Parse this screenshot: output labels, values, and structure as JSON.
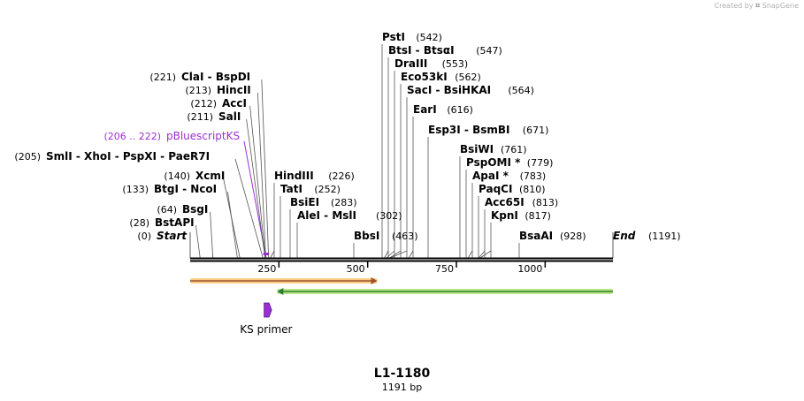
{
  "header": {
    "credit_prefix": "Created by",
    "brand": "SnapGene"
  },
  "construct": {
    "name": "L1-1180",
    "length_label": "1191 bp"
  },
  "colors": {
    "sites": "#000000",
    "primer": "#9b30d0",
    "feature1_fill": "#f6a623",
    "feature1_edge": "#a0522d",
    "feature2_fill": "#7ed321",
    "feature2_edge": "#2e7d32"
  },
  "sequence": {
    "length": 1191
  },
  "ticks": [
    {
      "pos": 250,
      "label": "250"
    },
    {
      "pos": 500,
      "label": "500"
    },
    {
      "pos": 750,
      "label": "750"
    },
    {
      "pos": 1000,
      "label": "1000"
    }
  ],
  "sites": [
    {
      "pos": 0,
      "text": "Start",
      "coord": "(0)",
      "side": "left",
      "italic": true
    },
    {
      "pos": 28,
      "text": "BstAPI",
      "coord": "(28)",
      "side": "left"
    },
    {
      "pos": 64,
      "text": "BsgI",
      "coord": "(64)",
      "side": "left"
    },
    {
      "pos": 133,
      "text": "BtgI - NcoI",
      "coord": "(133)",
      "side": "left"
    },
    {
      "pos": 140,
      "text": "XcmI",
      "coord": "(140)",
      "side": "left"
    },
    {
      "pos": 205,
      "text": "SmlI - XhoI - PspXI - PaeR7I",
      "coord": "(205)",
      "side": "left"
    },
    {
      "pos": 214,
      "text": "pBluescriptKS",
      "coord": "(206 .. 222)",
      "side": "left",
      "primer": true
    },
    {
      "pos": 211,
      "text": "SalI",
      "coord": "(211)",
      "side": "left"
    },
    {
      "pos": 212,
      "text": "AccI",
      "coord": "(212)",
      "side": "left"
    },
    {
      "pos": 213,
      "text": "HincII",
      "coord": "(213)",
      "side": "left"
    },
    {
      "pos": 221,
      "text": "ClaI - BspDI",
      "coord": "(221)",
      "side": "left"
    },
    {
      "pos": 226,
      "text": "HindIII",
      "coord": "(226)",
      "side": "right"
    },
    {
      "pos": 252,
      "text": "TatI",
      "coord": "(252)",
      "side": "right"
    },
    {
      "pos": 283,
      "text": "BsiEI",
      "coord": "(283)",
      "side": "right"
    },
    {
      "pos": 302,
      "text": "AleI - MslI",
      "coord": "(302)",
      "side": "right"
    },
    {
      "pos": 463,
      "text": "BbsI",
      "coord": "(463)",
      "side": "right"
    },
    {
      "pos": 542,
      "text": "PstI",
      "coord": "(542)",
      "side": "right"
    },
    {
      "pos": 547,
      "text": "BtsI - BtsαI",
      "coord": "(547)",
      "side": "right"
    },
    {
      "pos": 553,
      "text": "DraIII",
      "coord": "(553)",
      "side": "right"
    },
    {
      "pos": 562,
      "text": "Eco53kI",
      "coord": "(562)",
      "side": "right"
    },
    {
      "pos": 564,
      "text": "SacI - BsiHKAI",
      "coord": "(564)",
      "side": "right"
    },
    {
      "pos": 616,
      "text": "EarI",
      "coord": "(616)",
      "side": "right"
    },
    {
      "pos": 671,
      "text": "Esp3I - BsmBI",
      "coord": "(671)",
      "side": "right"
    },
    {
      "pos": 761,
      "text": "BsiWI",
      "coord": "(761)",
      "side": "right"
    },
    {
      "pos": 779,
      "text": "PspOMI *",
      "coord": "(779)",
      "side": "right"
    },
    {
      "pos": 783,
      "text": "ApaI *",
      "coord": "(783)",
      "side": "right"
    },
    {
      "pos": 810,
      "text": "PaqCI",
      "coord": "(810)",
      "side": "right"
    },
    {
      "pos": 813,
      "text": "Acc65I",
      "coord": "(813)",
      "side": "right"
    },
    {
      "pos": 817,
      "text": "KpnI",
      "coord": "(817)",
      "side": "right"
    },
    {
      "pos": 928,
      "text": "BsaAI",
      "coord": "(928)",
      "side": "right"
    },
    {
      "pos": 1191,
      "text": "End",
      "coord": "(1191)",
      "side": "right",
      "italic": true
    }
  ],
  "features": [
    {
      "start": 0,
      "end": 527,
      "strand": "forward",
      "color": "#f6a623",
      "edge": "#a0522d"
    },
    {
      "start": 245,
      "end": 1191,
      "strand": "reverse",
      "color": "#7ed321",
      "edge": "#2e7d32"
    }
  ],
  "primer": {
    "label": "KS primer",
    "start": 206,
    "end": 222,
    "direction": "forward"
  }
}
